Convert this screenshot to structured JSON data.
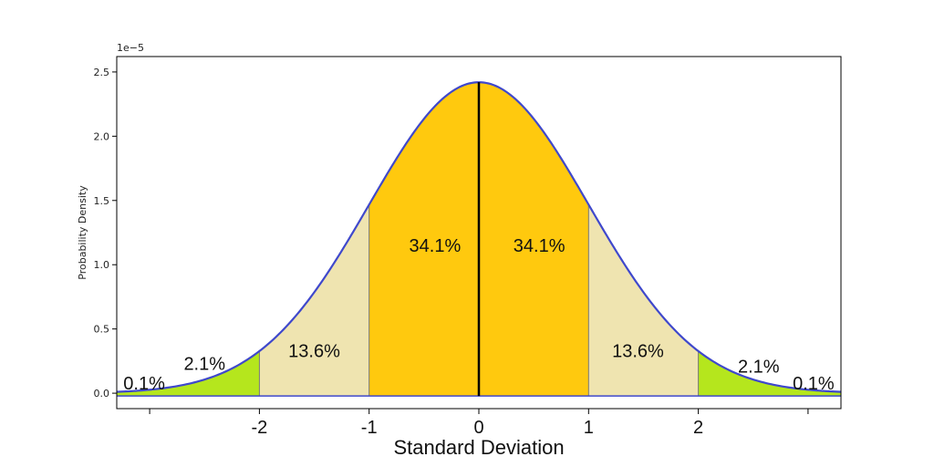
{
  "chart_data": {
    "type": "area",
    "title": "",
    "xlabel": "Standard Deviation",
    "ylabel": "Probability Density",
    "y_offset_label": "1e−5",
    "mean": 0,
    "sd": 1,
    "peak_density": 2.42,
    "xlim": [
      -3.3,
      3.3
    ],
    "ylim": [
      -0.12,
      2.62
    ],
    "y_ticks": [
      "0.0",
      "0.5",
      "1.0",
      "1.5",
      "2.0",
      "2.5"
    ],
    "x_ticks": [
      "",
      "-2",
      "-1",
      "0",
      "1",
      "2",
      ""
    ],
    "x_tick_values": [
      -3,
      -2,
      -1,
      0,
      1,
      2,
      3
    ],
    "grid": false,
    "regions": [
      {
        "from": -3.3,
        "to": -2,
        "color": "#b5e61d"
      },
      {
        "from": -2,
        "to": -1,
        "color": "#efe4b0"
      },
      {
        "from": -1,
        "to": 0,
        "color": "#ffc90e"
      },
      {
        "from": 0,
        "to": 1,
        "color": "#ffc90e"
      },
      {
        "from": 1,
        "to": 2,
        "color": "#efe4b0"
      },
      {
        "from": 2,
        "to": 3.3,
        "color": "#b5e61d"
      }
    ],
    "percentages": [
      {
        "label": "0.1%",
        "x": -3.05,
        "y": 0.03
      },
      {
        "label": "2.1%",
        "x": -2.5,
        "y": 0.18
      },
      {
        "label": "13.6%",
        "x": -1.5,
        "y": 0.28
      },
      {
        "label": "34.1%",
        "x": -0.4,
        "y": 1.1
      },
      {
        "label": "34.1%",
        "x": 0.55,
        "y": 1.1
      },
      {
        "label": "13.6%",
        "x": 1.45,
        "y": 0.28
      },
      {
        "label": "2.1%",
        "x": 2.55,
        "y": 0.16
      },
      {
        "label": "0.1%",
        "x": 3.05,
        "y": 0.03
      }
    ],
    "curve_color": "#3f48cc",
    "mean_line_color": "#000000"
  }
}
